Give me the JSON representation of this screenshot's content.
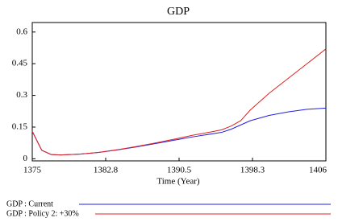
{
  "chart_data": {
    "type": "line",
    "title": "GDP",
    "x_label": "Time (Year)",
    "x": [
      1375,
      1376,
      1377,
      1378,
      1380,
      1382,
      1384,
      1386,
      1388,
      1390,
      1392,
      1394,
      1395,
      1396,
      1397,
      1398,
      1400,
      1402,
      1404,
      1406
    ],
    "series": [
      {
        "name": "GDP : Current",
        "color": "#2020e0",
        "values": [
          0.13,
          0.04,
          0.02,
          0.018,
          0.022,
          0.03,
          0.042,
          0.056,
          0.072,
          0.088,
          0.104,
          0.118,
          0.125,
          0.14,
          0.16,
          0.18,
          0.205,
          0.222,
          0.234,
          0.24
        ]
      },
      {
        "name": "GDP : Policy 2: +30%",
        "color": "#e02020",
        "values": [
          0.13,
          0.04,
          0.02,
          0.018,
          0.022,
          0.03,
          0.043,
          0.058,
          0.075,
          0.093,
          0.112,
          0.128,
          0.137,
          0.155,
          0.18,
          0.23,
          0.31,
          0.38,
          0.45,
          0.52
        ]
      }
    ],
    "xlim": [
      1375,
      1406
    ],
    "xticks": [
      1375,
      {
        "value": 1382.75,
        "label": "1382.8"
      },
      1390.5,
      {
        "value": 1398.25,
        "label": "1398.3"
      },
      1406
    ],
    "ylim": [
      -0.01,
      0.645
    ],
    "yticks": [
      0,
      0.15,
      0.3,
      0.45,
      0.6
    ],
    "grid": false
  }
}
